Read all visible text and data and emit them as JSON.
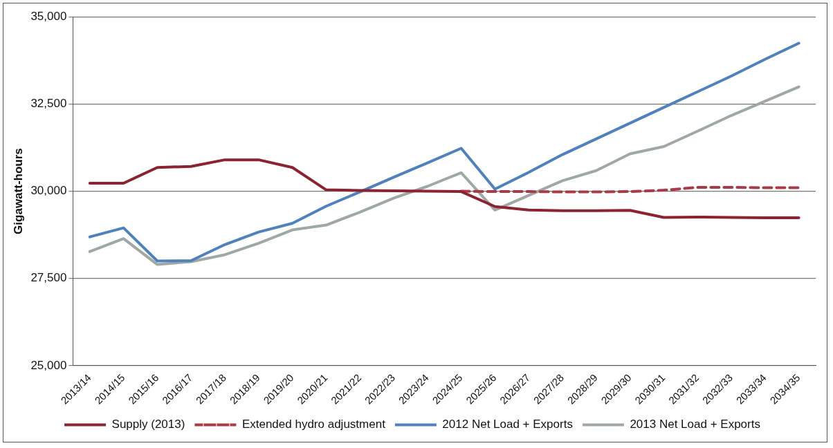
{
  "chart_data": {
    "type": "line",
    "ylabel": "Gigawatt-hours",
    "categories": [
      "2013/14",
      "2014/15",
      "2015/16",
      "2016/17",
      "2017/18",
      "2018/19",
      "2019/20",
      "2020/21",
      "2021/22",
      "2022/23",
      "2023/24",
      "2024/25",
      "2025/26",
      "2026/27",
      "2027/28",
      "2028/29",
      "2029/30",
      "2030/31",
      "2031/32",
      "2032/33",
      "2033/34",
      "2034/35"
    ],
    "series": [
      {
        "name": "Supply (2013)",
        "color": "#8b2332",
        "values": [
          30230,
          30230,
          30680,
          30710,
          30900,
          30900,
          30680,
          30040,
          30020,
          30010,
          30000,
          29990,
          29560,
          29460,
          29440,
          29440,
          29450,
          29250,
          29260,
          29250,
          29240,
          29240
        ]
      },
      {
        "name": "Extended hydro adjustment",
        "color": "#a93a48",
        "line_style": "dashed",
        "values": [
          null,
          null,
          null,
          null,
          null,
          null,
          null,
          null,
          null,
          null,
          null,
          30000,
          29990,
          29990,
          29980,
          29980,
          29990,
          30030,
          30110,
          30110,
          30100,
          30100
        ]
      },
      {
        "name": "2012 Net Load + Exports",
        "color": "#4f81bd",
        "values": [
          28690,
          28950,
          28000,
          28010,
          28470,
          28830,
          29080,
          29570,
          29980,
          30400,
          30810,
          31230,
          30060,
          30540,
          31050,
          31500,
          31950,
          32400,
          32850,
          33300,
          33780,
          34240
        ]
      },
      {
        "name": "2013 Net Load + Exports",
        "color": "#a0a8a5",
        "values": [
          28270,
          28640,
          27900,
          27980,
          28180,
          28510,
          28890,
          29030,
          29400,
          29800,
          30140,
          30530,
          29460,
          29880,
          30300,
          30590,
          31070,
          31280,
          31720,
          32170,
          32580,
          32990
        ]
      }
    ],
    "ylim": [
      25000,
      35000
    ],
    "yticks": [
      {
        "value": 25000,
        "label": "25,000"
      },
      {
        "value": 27500,
        "label": "27,500"
      },
      {
        "value": 30000,
        "label": "30,000"
      },
      {
        "value": 32500,
        "label": "32,500"
      },
      {
        "value": 35000,
        "label": "35,000"
      }
    ],
    "grid": "y",
    "legend": "bottom",
    "marker": "none",
    "line_style": "solid"
  }
}
